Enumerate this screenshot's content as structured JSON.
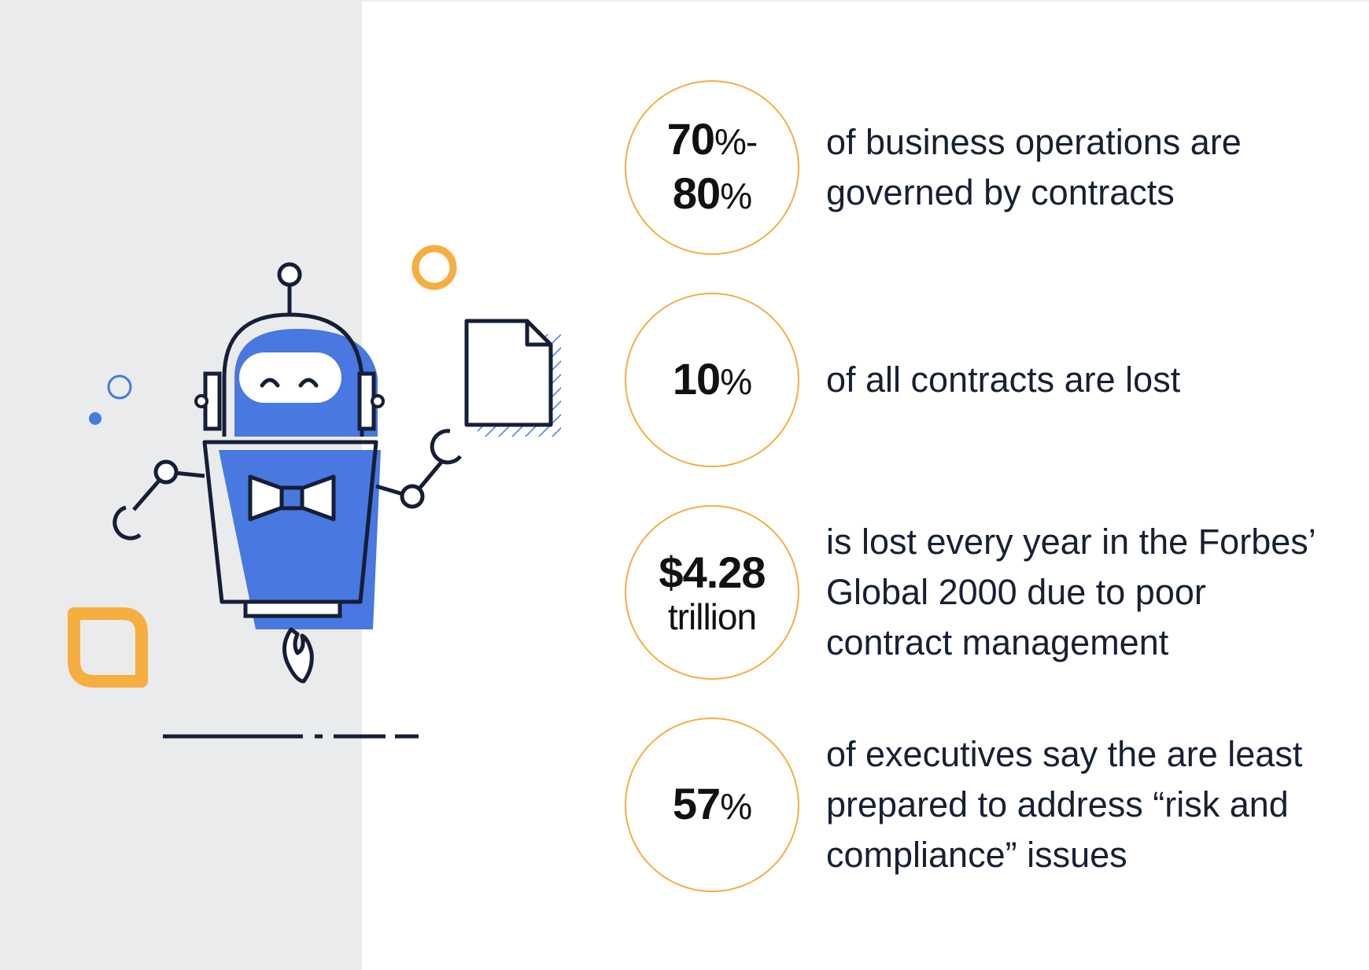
{
  "colors": {
    "panel": "#eaebed",
    "accent_orange": "#f5ae3f",
    "robot_blue": "#4878e0",
    "outline_navy": "#151e36"
  },
  "illustration": {
    "subject": "robot-with-document-icon"
  },
  "stats": [
    {
      "value_line1": "70",
      "pct_line1": "%-",
      "value_line2": "80",
      "pct_line2": "%",
      "description": "of business operations are governed by contracts"
    },
    {
      "value": "10",
      "pct": "%",
      "description": "of all contracts are lost"
    },
    {
      "value": "$4.28",
      "unit": "trillion",
      "description": "is lost every year in the Forbes’ Global 2000 due to poor contract management"
    },
    {
      "value": "57",
      "pct": "%",
      "description": "of executives say the are least prepared to address “risk and compliance” issues"
    }
  ]
}
